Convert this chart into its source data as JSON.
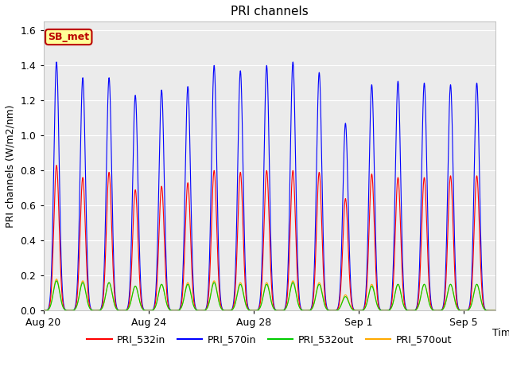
{
  "title": "PRI channels",
  "ylabel": "PRI channels (W/m2/nm)",
  "xlabel": "Time",
  "legend_label": "SB_met",
  "series": {
    "PRI_532in": {
      "color": "#ff0000",
      "linewidth": 0.8
    },
    "PRI_570in": {
      "color": "#0000ff",
      "linewidth": 0.8
    },
    "PRI_532out": {
      "color": "#00cc00",
      "linewidth": 0.8
    },
    "PRI_570out": {
      "color": "#ffaa00",
      "linewidth": 0.8
    }
  },
  "ylim": [
    0,
    1.65
  ],
  "yticks": [
    0.0,
    0.2,
    0.4,
    0.6,
    0.8,
    1.0,
    1.2,
    1.4,
    1.6
  ],
  "bg_color": "#ebebeb",
  "xtick_dates": [
    "Aug 20",
    "Aug 24",
    "Aug 28",
    "Sep 1",
    "Sep 5"
  ],
  "xtick_positions_days": [
    0,
    4,
    8,
    12,
    16
  ],
  "total_days": 17.2,
  "peak_positions_days": [
    0.5,
    1.5,
    2.5,
    3.5,
    4.5,
    5.5,
    6.5,
    7.5,
    8.5,
    9.5,
    10.5,
    11.5,
    12.5,
    13.5,
    14.5,
    15.5,
    16.5
  ],
  "peak_532in": [
    0.83,
    0.76,
    0.79,
    0.69,
    0.71,
    0.73,
    0.8,
    0.79,
    0.8,
    0.8,
    0.79,
    0.64,
    0.78,
    0.76,
    0.76,
    0.77,
    0.77
  ],
  "peak_570in": [
    1.42,
    1.33,
    1.33,
    1.23,
    1.26,
    1.28,
    1.4,
    1.37,
    1.4,
    1.42,
    1.36,
    1.07,
    1.29,
    1.31,
    1.3,
    1.29,
    1.3
  ],
  "peak_532out": [
    0.17,
    0.16,
    0.16,
    0.14,
    0.15,
    0.15,
    0.16,
    0.15,
    0.15,
    0.16,
    0.15,
    0.08,
    0.14,
    0.15,
    0.15,
    0.15,
    0.15
  ],
  "peak_570out": [
    0.18,
    0.17,
    0.16,
    0.14,
    0.15,
    0.16,
    0.17,
    0.16,
    0.16,
    0.17,
    0.16,
    0.09,
    0.15,
    0.15,
    0.15,
    0.15,
    0.15
  ],
  "peak_sigma_in": 0.1,
  "peak_sigma_out": 0.12,
  "figsize": [
    6.4,
    4.8
  ],
  "dpi": 100
}
